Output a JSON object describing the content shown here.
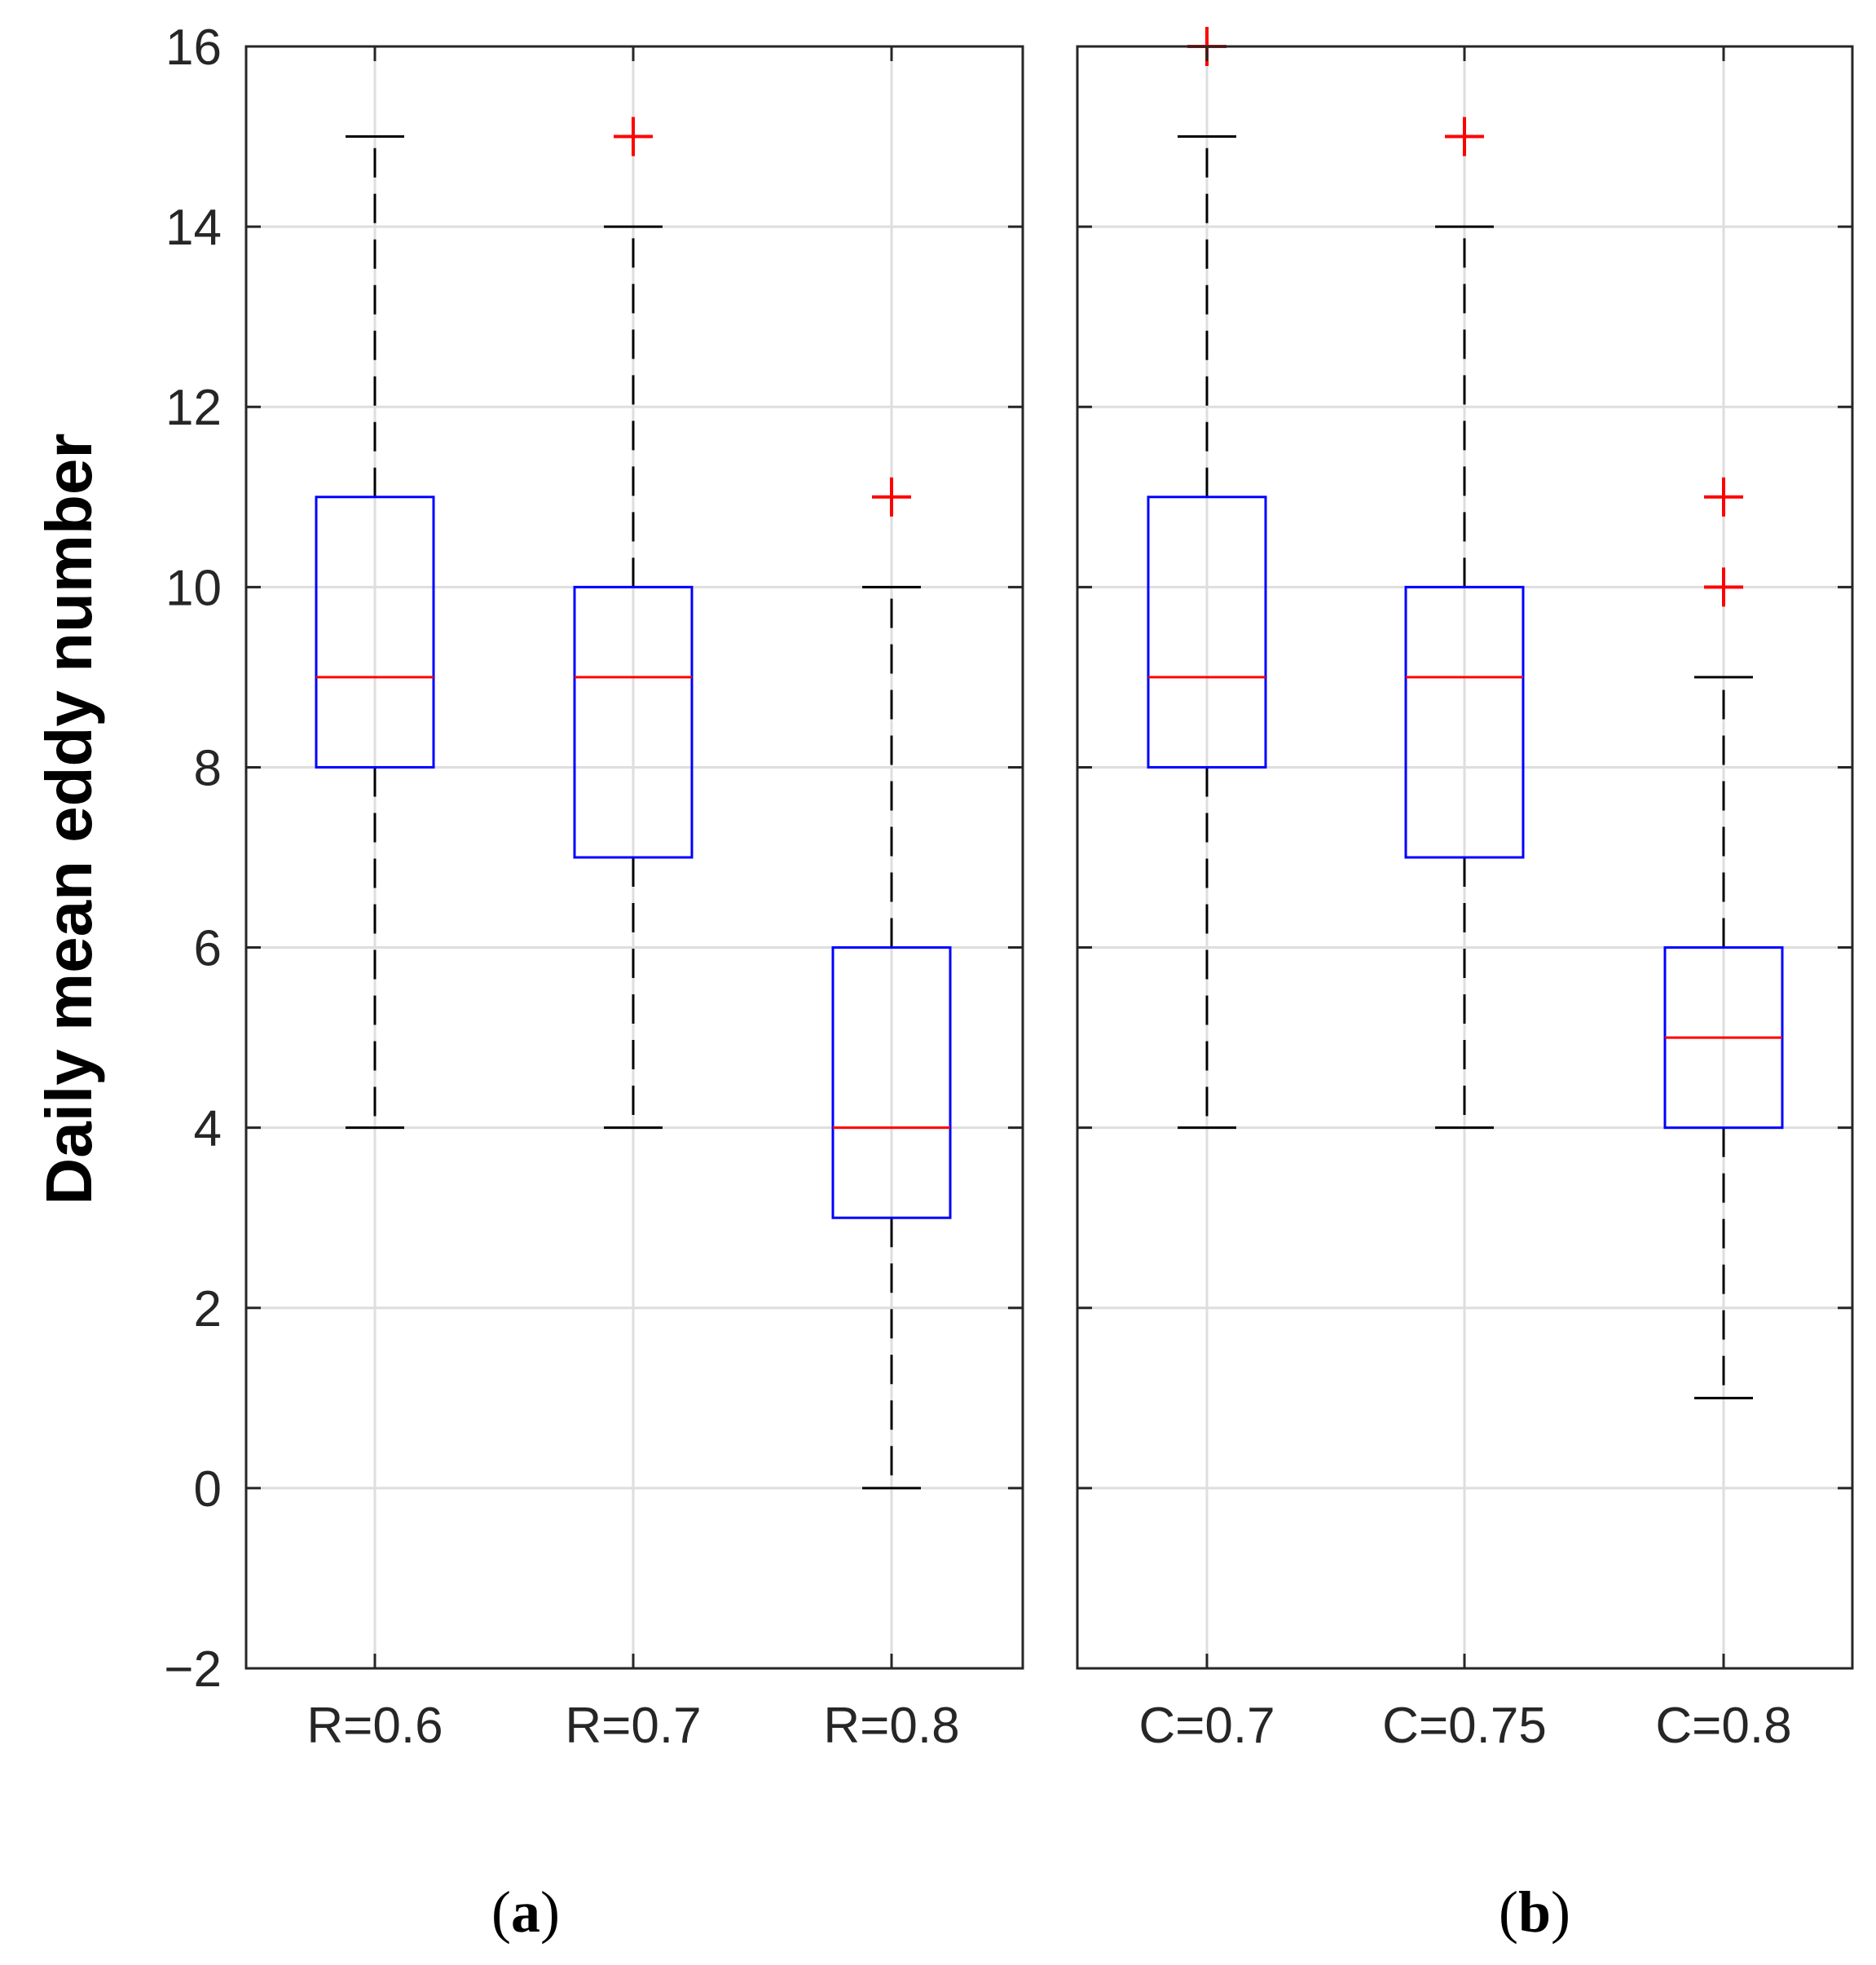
{
  "chart_data": [
    {
      "type": "box",
      "panel_label": "a",
      "ylabel": "Daily mean eddy number",
      "ylim": [
        -2,
        16
      ],
      "yticks": [
        16,
        14,
        12,
        10,
        8,
        6,
        4,
        2,
        0,
        -2
      ],
      "ytick_labels": [
        "16",
        "14",
        "12",
        "10",
        "8",
        "6",
        "4",
        "2",
        "0",
        "−2"
      ],
      "grid": true,
      "categories": [
        "R=0.6",
        "R=0.7",
        "R=0.8"
      ],
      "boxes": [
        {
          "label": "R=0.6",
          "whisker_low": 4,
          "q1": 8,
          "median": 9,
          "q3": 11,
          "whisker_high": 15,
          "outliers": []
        },
        {
          "label": "R=0.7",
          "whisker_low": 4,
          "q1": 7,
          "median": 9,
          "q3": 10,
          "whisker_high": 14,
          "outliers": [
            15
          ]
        },
        {
          "label": "R=0.8",
          "whisker_low": 0,
          "q1": 3,
          "median": 4,
          "q3": 6,
          "whisker_high": 10,
          "outliers": [
            11
          ]
        }
      ]
    },
    {
      "type": "box",
      "panel_label": "b",
      "ylim": [
        -2,
        16
      ],
      "yticks": [
        16,
        14,
        12,
        10,
        8,
        6,
        4,
        2,
        0,
        -2
      ],
      "grid": true,
      "categories": [
        "C=0.7",
        "C=0.75",
        "C=0.8"
      ],
      "boxes": [
        {
          "label": "C=0.7",
          "whisker_low": 4,
          "q1": 8,
          "median": 9,
          "q3": 11,
          "whisker_high": 15,
          "outliers": [
            16
          ]
        },
        {
          "label": "C=0.75",
          "whisker_low": 4,
          "q1": 7,
          "median": 9,
          "q3": 10,
          "whisker_high": 14,
          "outliers": [
            15
          ]
        },
        {
          "label": "C=0.8",
          "whisker_low": 1,
          "q1": 4,
          "median": 5,
          "q3": 6,
          "whisker_high": 9,
          "outliers": [
            10,
            11
          ]
        }
      ]
    }
  ],
  "colors": {
    "box": "#0000ff",
    "median": "#ff0000",
    "outlier": "#ff0000",
    "whisker": "#000000",
    "grid": "#dedede",
    "axis": "#262626"
  }
}
